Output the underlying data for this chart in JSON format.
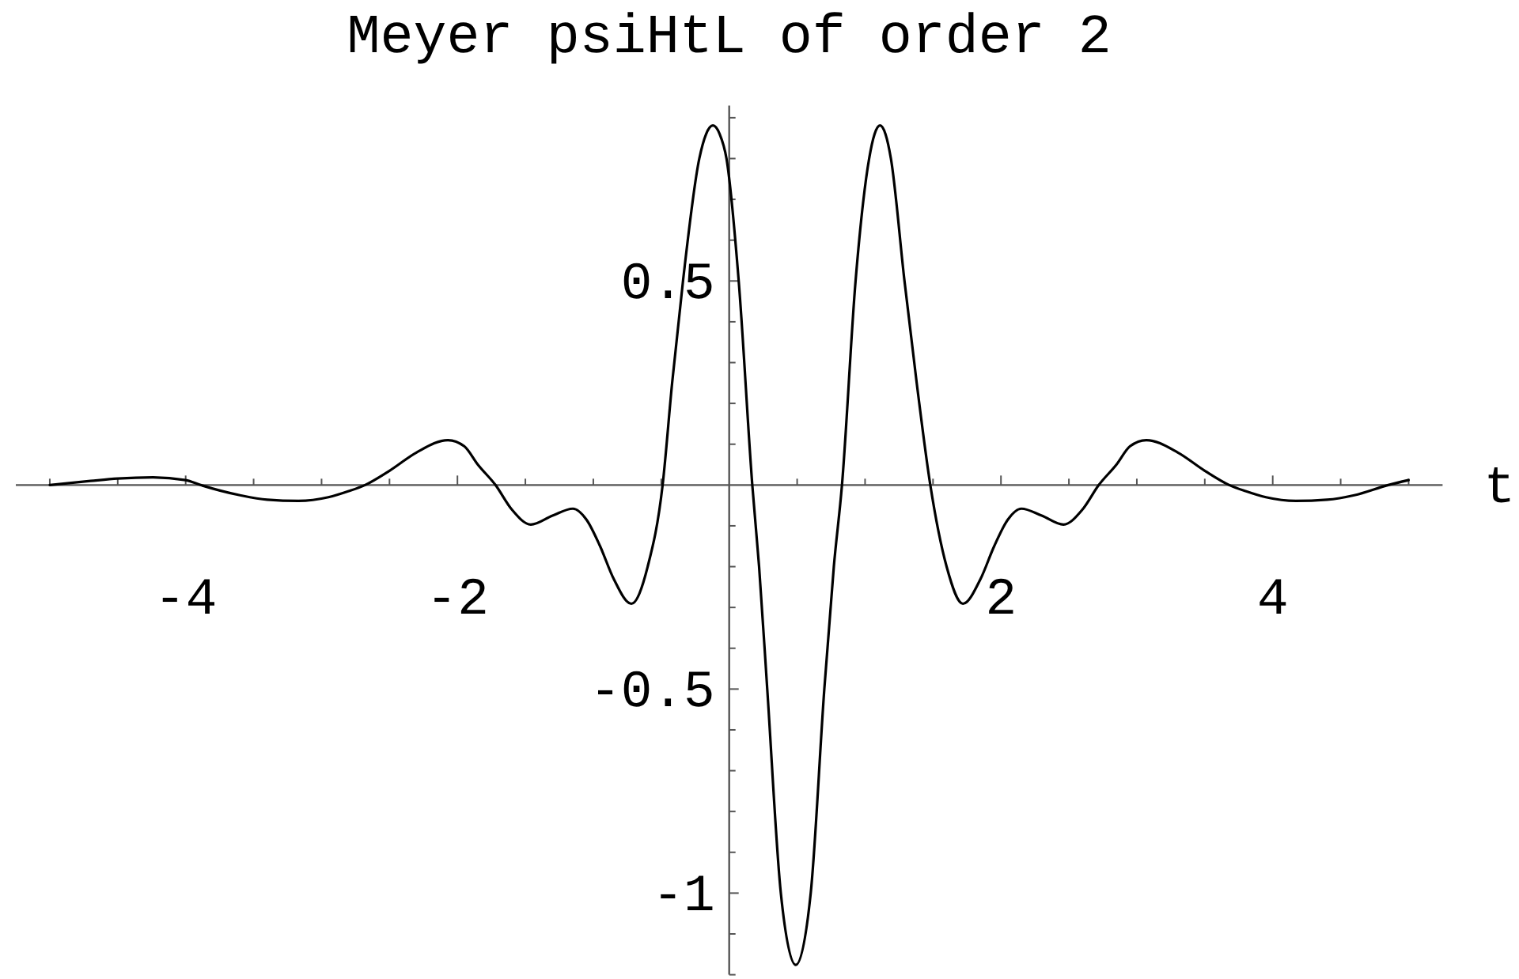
{
  "chart_data": {
    "type": "line",
    "title": "Meyer psiHtL of order 2",
    "xlabel": "t",
    "x": [
      -5.0,
      -4.7,
      -4.5,
      -4.24,
      -4.0,
      -3.89,
      -3.6,
      -3.4,
      -3.17,
      -2.95,
      -2.8,
      -2.68,
      -2.5,
      -2.3,
      -2.07,
      -1.95,
      -1.85,
      -1.72,
      -1.6,
      -1.46,
      -1.3,
      -1.15,
      -1.05,
      -0.95,
      -0.85,
      -0.72,
      -0.6,
      -0.49,
      -0.42,
      -0.34,
      -0.22,
      -0.17,
      -0.12,
      -0.07,
      -0.02,
      0.07,
      0.17,
      0.22,
      0.28,
      0.38,
      0.49,
      0.6,
      0.7,
      0.77,
      0.83,
      0.93,
      1.03,
      1.07,
      1.11,
      1.15,
      1.19,
      1.29,
      1.38,
      1.48,
      1.6,
      1.72,
      1.85,
      1.95,
      2.05,
      2.15,
      2.3,
      2.46,
      2.6,
      2.72,
      2.85,
      2.95,
      3.07,
      3.3,
      3.5,
      3.68,
      3.8,
      3.95,
      4.17,
      4.4,
      4.6,
      4.85,
      5.0
    ],
    "series": [
      {
        "color": "#000000",
        "values": [
          0.0,
          0.01,
          0.016,
          0.019,
          0.012,
          0.0,
          -0.025,
          -0.036,
          -0.039,
          -0.03,
          -0.015,
          0.0,
          0.035,
          0.08,
          0.11,
          0.095,
          0.05,
          0.0,
          -0.06,
          -0.097,
          -0.075,
          -0.058,
          -0.085,
          -0.15,
          -0.23,
          -0.291,
          -0.2,
          0.0,
          0.25,
          0.5,
          0.8,
          0.86,
          0.881,
          0.86,
          0.8,
          0.5,
          0.0,
          -0.2,
          -0.5,
          -1.0,
          -1.176,
          -1.0,
          -0.5,
          -0.2,
          0.0,
          0.5,
          0.8,
          0.86,
          0.881,
          0.86,
          0.8,
          0.5,
          0.25,
          0.0,
          -0.2,
          -0.291,
          -0.23,
          -0.15,
          -0.085,
          -0.058,
          -0.075,
          -0.097,
          -0.06,
          0.0,
          0.05,
          0.095,
          0.11,
          0.08,
          0.035,
          0.0,
          -0.015,
          -0.03,
          -0.039,
          -0.036,
          -0.025,
          0.0,
          0.012
        ]
      }
    ],
    "xlim": [
      -5.25,
      5.25
    ],
    "ylim": [
      -1.2,
      0.93
    ],
    "xticks": [
      {
        "value": -5,
        "label": null
      },
      {
        "value": -4.5,
        "label": null
      },
      -4,
      {
        "value": -3.5,
        "label": null
      },
      {
        "value": -3,
        "label": null
      },
      {
        "value": -2.5,
        "label": null
      },
      -2,
      {
        "value": -1.5,
        "label": null
      },
      {
        "value": -1,
        "label": null
      },
      {
        "value": -0.5,
        "label": null
      },
      {
        "value": 0.5,
        "label": null
      },
      {
        "value": 1,
        "label": null
      },
      {
        "value": 1.5,
        "label": null
      },
      2,
      {
        "value": 2.5,
        "label": null
      },
      {
        "value": 3,
        "label": null
      },
      {
        "value": 3.5,
        "label": null
      },
      4,
      {
        "value": 4.5,
        "label": null
      },
      {
        "value": 5,
        "label": null
      }
    ],
    "yticks": [
      {
        "value": -1.2,
        "label": null
      },
      {
        "value": -1.1,
        "label": null
      },
      -1,
      {
        "value": -0.9,
        "label": null
      },
      {
        "value": -0.8,
        "label": null
      },
      {
        "value": -0.7,
        "label": null
      },
      {
        "value": -0.6,
        "label": null
      },
      -0.5,
      {
        "value": -0.4,
        "label": null
      },
      {
        "value": -0.3,
        "label": null
      },
      {
        "value": -0.2,
        "label": null
      },
      {
        "value": -0.1,
        "label": null
      },
      {
        "value": 0.1,
        "label": null
      },
      {
        "value": 0.2,
        "label": null
      },
      {
        "value": 0.3,
        "label": null
      },
      {
        "value": 0.4,
        "label": null
      },
      0.5,
      {
        "value": 0.6,
        "label": null
      },
      {
        "value": 0.7,
        "label": null
      },
      {
        "value": 0.8,
        "label": null
      },
      {
        "value": 0.9,
        "label": null
      }
    ],
    "line_style": "solid"
  }
}
